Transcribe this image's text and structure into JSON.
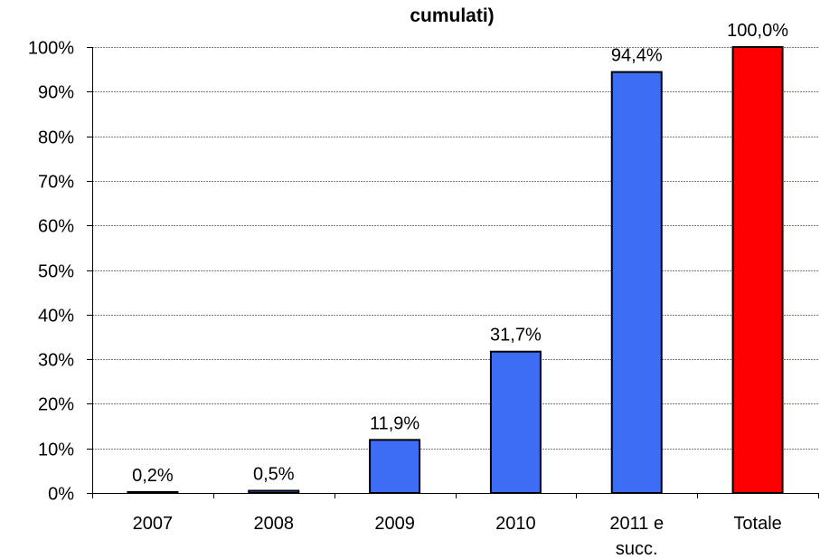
{
  "chart_data": {
    "type": "bar",
    "title": "cumulati)",
    "categories": [
      "2007",
      "2008",
      "2009",
      "2010",
      "2011 e succ.",
      "Totale"
    ],
    "category_lines": [
      [
        "2007"
      ],
      [
        "2008"
      ],
      [
        "2009"
      ],
      [
        "2010"
      ],
      [
        "2011 e",
        "succ."
      ],
      [
        "Totale"
      ]
    ],
    "values": [
      0.2,
      0.5,
      11.9,
      31.7,
      94.4,
      100.0
    ],
    "value_labels": [
      "0,2%",
      "0,5%",
      "11,9%",
      "31,7%",
      "94,4%",
      "100,0%"
    ],
    "bar_colors": [
      "#3d6cf5",
      "#3d6cf5",
      "#3d6cf5",
      "#3d6cf5",
      "#3d6cf5",
      "#ff0000"
    ],
    "ylim": [
      0,
      100
    ],
    "yticks": [
      0,
      10,
      20,
      30,
      40,
      50,
      60,
      70,
      80,
      90,
      100
    ],
    "ytick_labels": [
      "0%",
      "10%",
      "20%",
      "30%",
      "40%",
      "50%",
      "60%",
      "70%",
      "80%",
      "90%",
      "100%"
    ],
    "grid": true,
    "legend": "none"
  }
}
